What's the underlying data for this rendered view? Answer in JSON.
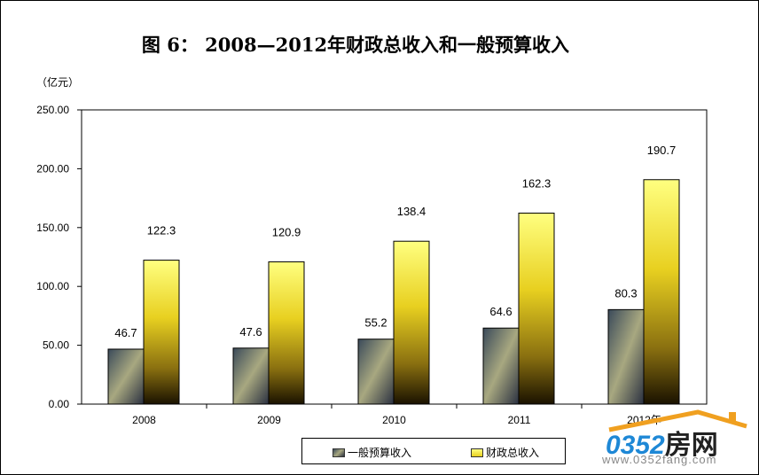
{
  "chart_data": {
    "type": "bar",
    "title": "图  6：    2008—2012年财政总收入和一般预算收入",
    "ylabel": "（亿元）",
    "categories": [
      "2008",
      "2009",
      "2010",
      "2011",
      "2012年"
    ],
    "series": [
      {
        "name": "一般预算收入",
        "values": [
          46.7,
          47.6,
          55.2,
          64.6,
          80.3
        ],
        "labels": [
          "46.7",
          "47.6",
          "55.2",
          "64.6",
          "80.3"
        ],
        "color": "#6a7a8a"
      },
      {
        "name": "财政总收入",
        "values": [
          122.3,
          120.9,
          138.4,
          162.3,
          190.7
        ],
        "labels": [
          "122.3",
          "120.9",
          "138.4",
          "162.3",
          "190.7"
        ],
        "color": "#e8d020"
      }
    ],
    "ylim": [
      0,
      250
    ],
    "yticks": [
      "0.00",
      "50.00",
      "100.00",
      "150.00",
      "200.00",
      "250.00"
    ],
    "grid": false,
    "legend": "bottom"
  },
  "watermark": {
    "logo": "0352房网",
    "url": "www.0352fang.com"
  }
}
